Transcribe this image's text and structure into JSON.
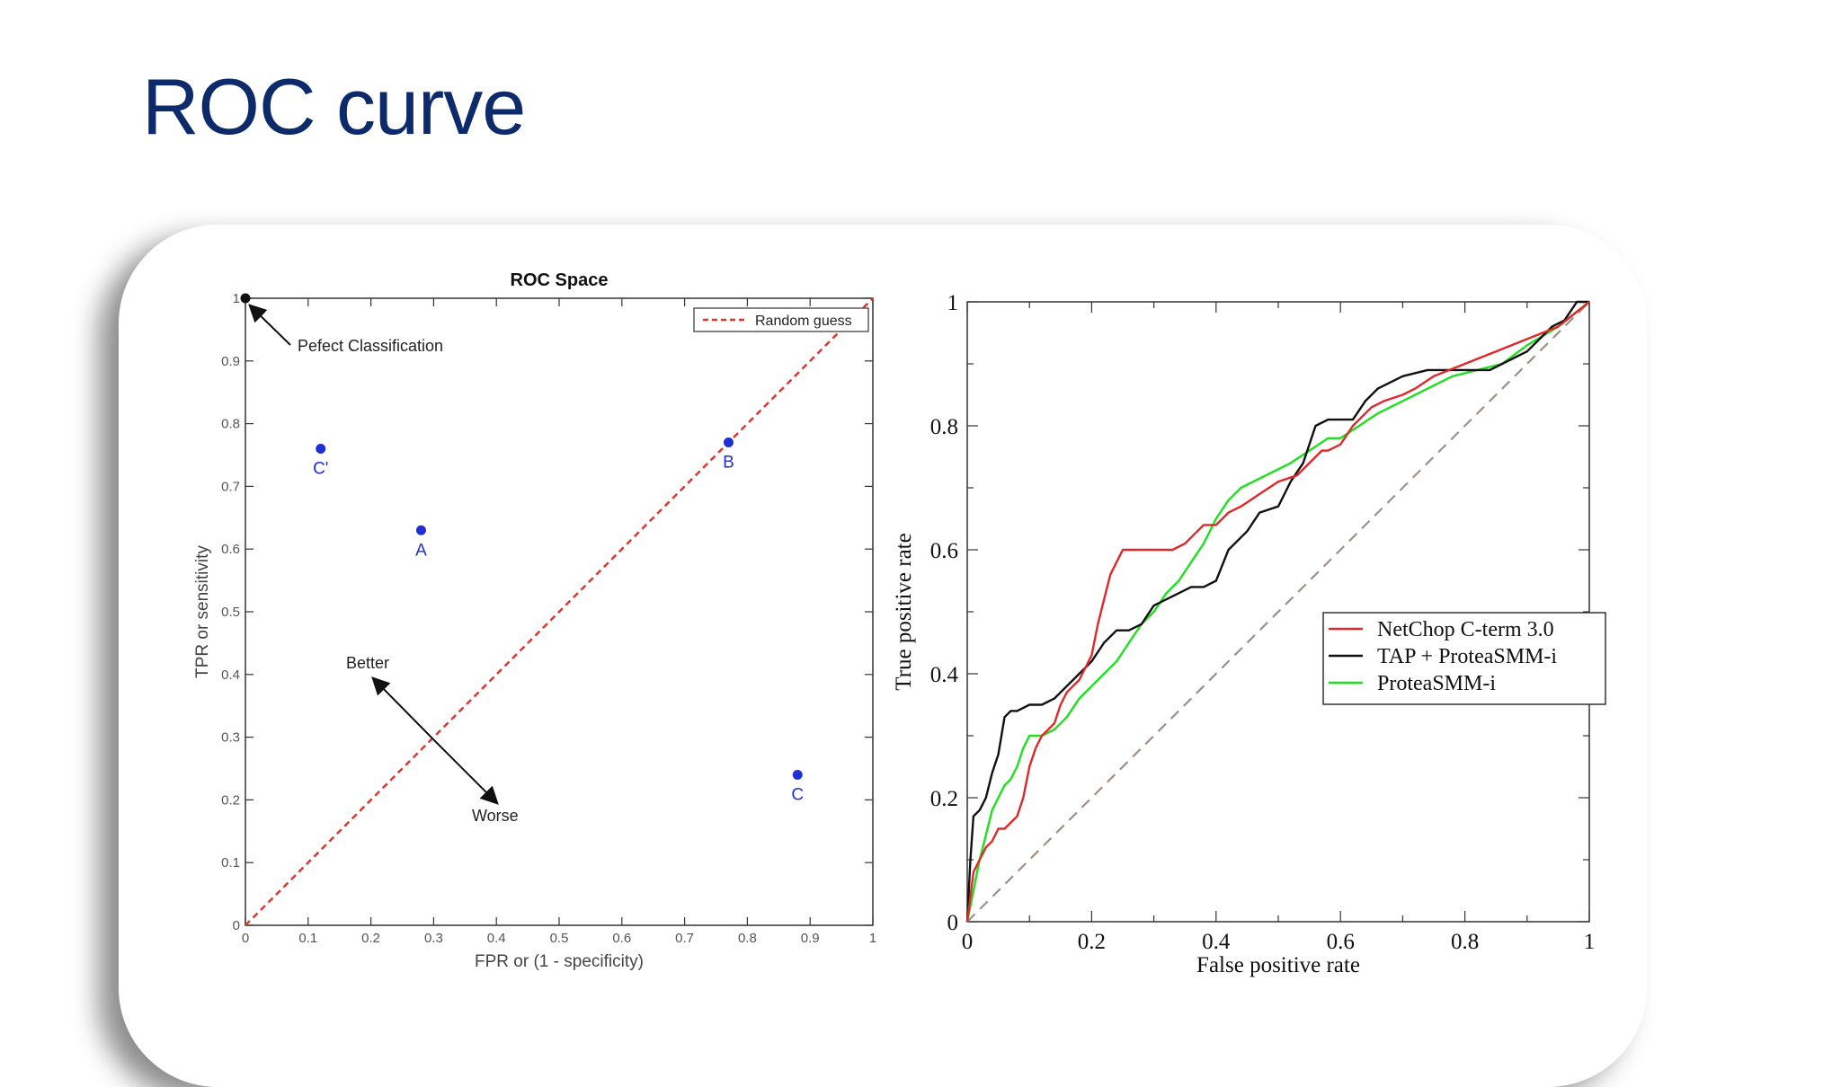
{
  "slide": {
    "title": "ROC curve"
  },
  "chart_data": [
    {
      "type": "scatter",
      "title": "ROC Space",
      "xlabel": "FPR or (1 - specificity)",
      "ylabel": "TPR or sensitivity",
      "xlim": [
        0,
        1
      ],
      "ylim": [
        0,
        1
      ],
      "xticks": [
        "0",
        "0.1",
        "0.2",
        "0.3",
        "0.4",
        "0.5",
        "0.6",
        "0.7",
        "0.8",
        "0.9",
        "1"
      ],
      "yticks": [
        "0",
        "0.1",
        "0.2",
        "0.3",
        "0.4",
        "0.5",
        "0.6",
        "0.7",
        "0.8",
        "0.9",
        "1"
      ],
      "legend": {
        "position": "top-right",
        "entries": [
          "Random guess"
        ]
      },
      "diagonal": {
        "name": "Random guess",
        "color": "#e8322c",
        "x": [
          0,
          1
        ],
        "y": [
          0,
          1
        ]
      },
      "points": [
        {
          "label": "",
          "x": 0,
          "y": 1,
          "color": "#111111"
        },
        {
          "label": "C'",
          "x": 0.12,
          "y": 0.76,
          "color": "#1f2fd6"
        },
        {
          "label": "A",
          "x": 0.28,
          "y": 0.63,
          "color": "#1f2fd6"
        },
        {
          "label": "B",
          "x": 0.77,
          "y": 0.77,
          "color": "#1f2fd6"
        },
        {
          "label": "C",
          "x": 0.88,
          "y": 0.24,
          "color": "#1f2fd6"
        }
      ],
      "annotations": {
        "perfect": "Pefect Classification",
        "better": "Better",
        "worse": "Worse"
      }
    },
    {
      "type": "line",
      "xlabel": "False positive rate",
      "ylabel": "True positive rate",
      "xlim": [
        0,
        1
      ],
      "ylim": [
        0,
        1
      ],
      "xticks": [
        "0",
        "0.2",
        "0.4",
        "0.6",
        "0.8",
        "1"
      ],
      "yticks": [
        "0",
        "0.2",
        "0.4",
        "0.6",
        "0.8",
        "1"
      ],
      "legend": {
        "position": "center-right"
      },
      "diagonal": {
        "color": "#a08f85",
        "x": [
          0,
          1
        ],
        "y": [
          0,
          1
        ]
      },
      "series": [
        {
          "name": "NetChop C-term 3.0",
          "color": "#e0282a",
          "x": [
            0,
            0.01,
            0.02,
            0.03,
            0.04,
            0.05,
            0.06,
            0.07,
            0.08,
            0.09,
            0.1,
            0.11,
            0.12,
            0.13,
            0.14,
            0.15,
            0.16,
            0.17,
            0.18,
            0.19,
            0.2,
            0.21,
            0.22,
            0.23,
            0.24,
            0.25,
            0.26,
            0.28,
            0.3,
            0.33,
            0.35,
            0.36,
            0.37,
            0.38,
            0.4,
            0.42,
            0.44,
            0.47,
            0.5,
            0.53,
            0.55,
            0.57,
            0.58,
            0.6,
            0.62,
            0.65,
            0.67,
            0.7,
            0.72,
            0.75,
            0.8,
            0.85,
            0.9,
            0.95,
            1
          ],
          "y": [
            0,
            0.08,
            0.1,
            0.12,
            0.13,
            0.15,
            0.15,
            0.16,
            0.17,
            0.2,
            0.25,
            0.28,
            0.3,
            0.31,
            0.32,
            0.35,
            0.37,
            0.38,
            0.39,
            0.41,
            0.43,
            0.48,
            0.52,
            0.56,
            0.58,
            0.6,
            0.6,
            0.6,
            0.6,
            0.6,
            0.61,
            0.62,
            0.63,
            0.64,
            0.64,
            0.66,
            0.67,
            0.69,
            0.71,
            0.72,
            0.74,
            0.76,
            0.76,
            0.77,
            0.8,
            0.83,
            0.84,
            0.85,
            0.86,
            0.88,
            0.9,
            0.92,
            0.94,
            0.96,
            1
          ]
        },
        {
          "name": "TAP + ProteaSMM-i",
          "color": "#111111",
          "x": [
            0,
            0.005,
            0.01,
            0.02,
            0.03,
            0.04,
            0.05,
            0.06,
            0.07,
            0.08,
            0.1,
            0.12,
            0.14,
            0.16,
            0.18,
            0.2,
            0.22,
            0.24,
            0.26,
            0.28,
            0.3,
            0.32,
            0.34,
            0.36,
            0.38,
            0.4,
            0.42,
            0.44,
            0.45,
            0.47,
            0.5,
            0.52,
            0.54,
            0.56,
            0.58,
            0.6,
            0.62,
            0.64,
            0.66,
            0.7,
            0.74,
            0.78,
            0.84,
            0.86,
            0.9,
            0.94,
            0.96,
            0.98,
            1
          ],
          "y": [
            0,
            0.1,
            0.17,
            0.18,
            0.2,
            0.24,
            0.27,
            0.33,
            0.34,
            0.34,
            0.35,
            0.35,
            0.36,
            0.38,
            0.4,
            0.42,
            0.45,
            0.47,
            0.47,
            0.48,
            0.51,
            0.52,
            0.53,
            0.54,
            0.54,
            0.55,
            0.6,
            0.62,
            0.63,
            0.66,
            0.67,
            0.71,
            0.74,
            0.8,
            0.81,
            0.81,
            0.81,
            0.84,
            0.86,
            0.88,
            0.89,
            0.89,
            0.89,
            0.9,
            0.92,
            0.96,
            0.97,
            1,
            1
          ]
        },
        {
          "name": "ProteaSMM-i",
          "color": "#1ee01e",
          "x": [
            0,
            0.01,
            0.02,
            0.03,
            0.04,
            0.05,
            0.06,
            0.07,
            0.08,
            0.09,
            0.1,
            0.12,
            0.14,
            0.16,
            0.18,
            0.2,
            0.22,
            0.24,
            0.26,
            0.28,
            0.3,
            0.32,
            0.34,
            0.36,
            0.38,
            0.4,
            0.42,
            0.44,
            0.46,
            0.48,
            0.5,
            0.52,
            0.55,
            0.58,
            0.6,
            0.63,
            0.66,
            0.7,
            0.74,
            0.78,
            0.82,
            0.86,
            0.9,
            0.95,
            1
          ],
          "y": [
            0,
            0.05,
            0.1,
            0.14,
            0.18,
            0.2,
            0.22,
            0.23,
            0.25,
            0.28,
            0.3,
            0.3,
            0.31,
            0.33,
            0.36,
            0.38,
            0.4,
            0.42,
            0.45,
            0.48,
            0.5,
            0.53,
            0.55,
            0.58,
            0.61,
            0.65,
            0.68,
            0.7,
            0.71,
            0.72,
            0.73,
            0.74,
            0.76,
            0.78,
            0.78,
            0.8,
            0.82,
            0.84,
            0.86,
            0.88,
            0.89,
            0.9,
            0.93,
            0.96,
            1
          ]
        }
      ]
    }
  ]
}
